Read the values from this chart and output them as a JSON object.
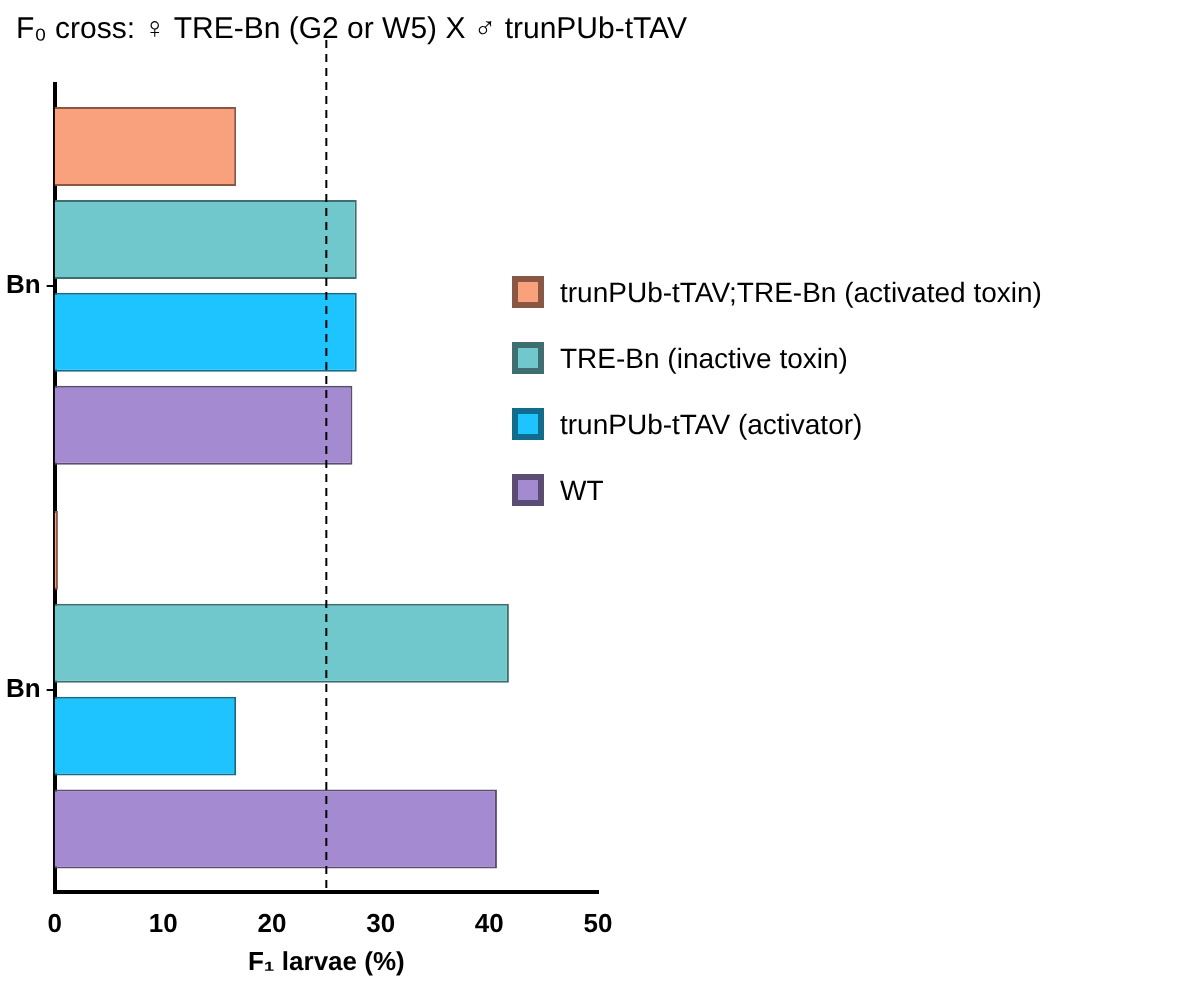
{
  "chart_data": {
    "type": "bar",
    "orientation": "horizontal",
    "title": "F₀ cross: ♀ TRE-Bn (G2 or W5) X ♂ trunPUb-tTAV",
    "xlabel": "F₁ larvae (%)",
    "categories": [
      "Bn",
      "Bn"
    ],
    "series": [
      {
        "name": "trunPUb-tTAV;TRE-Bn (activated toxin)",
        "color": "#f9a07c",
        "values": [
          16.7,
          0.3
        ]
      },
      {
        "name": "TRE-Bn (inactive toxin)",
        "color": "#70c8cc",
        "values": [
          27.8,
          41.8
        ]
      },
      {
        "name": "trunPUb-tTAV (activator)",
        "color": "#1ec4ff",
        "values": [
          27.8,
          16.7
        ]
      },
      {
        "name": "WT",
        "color": "#a48ad0",
        "values": [
          27.4,
          40.7
        ]
      }
    ],
    "xlim": [
      0,
      50
    ],
    "xticks": [
      0,
      10,
      20,
      30,
      40,
      50
    ],
    "grid": false,
    "legend": "right",
    "ref_lines": [
      {
        "axis": "x",
        "value": 25,
        "line_style": "dashed",
        "color": "#000000"
      }
    ]
  }
}
